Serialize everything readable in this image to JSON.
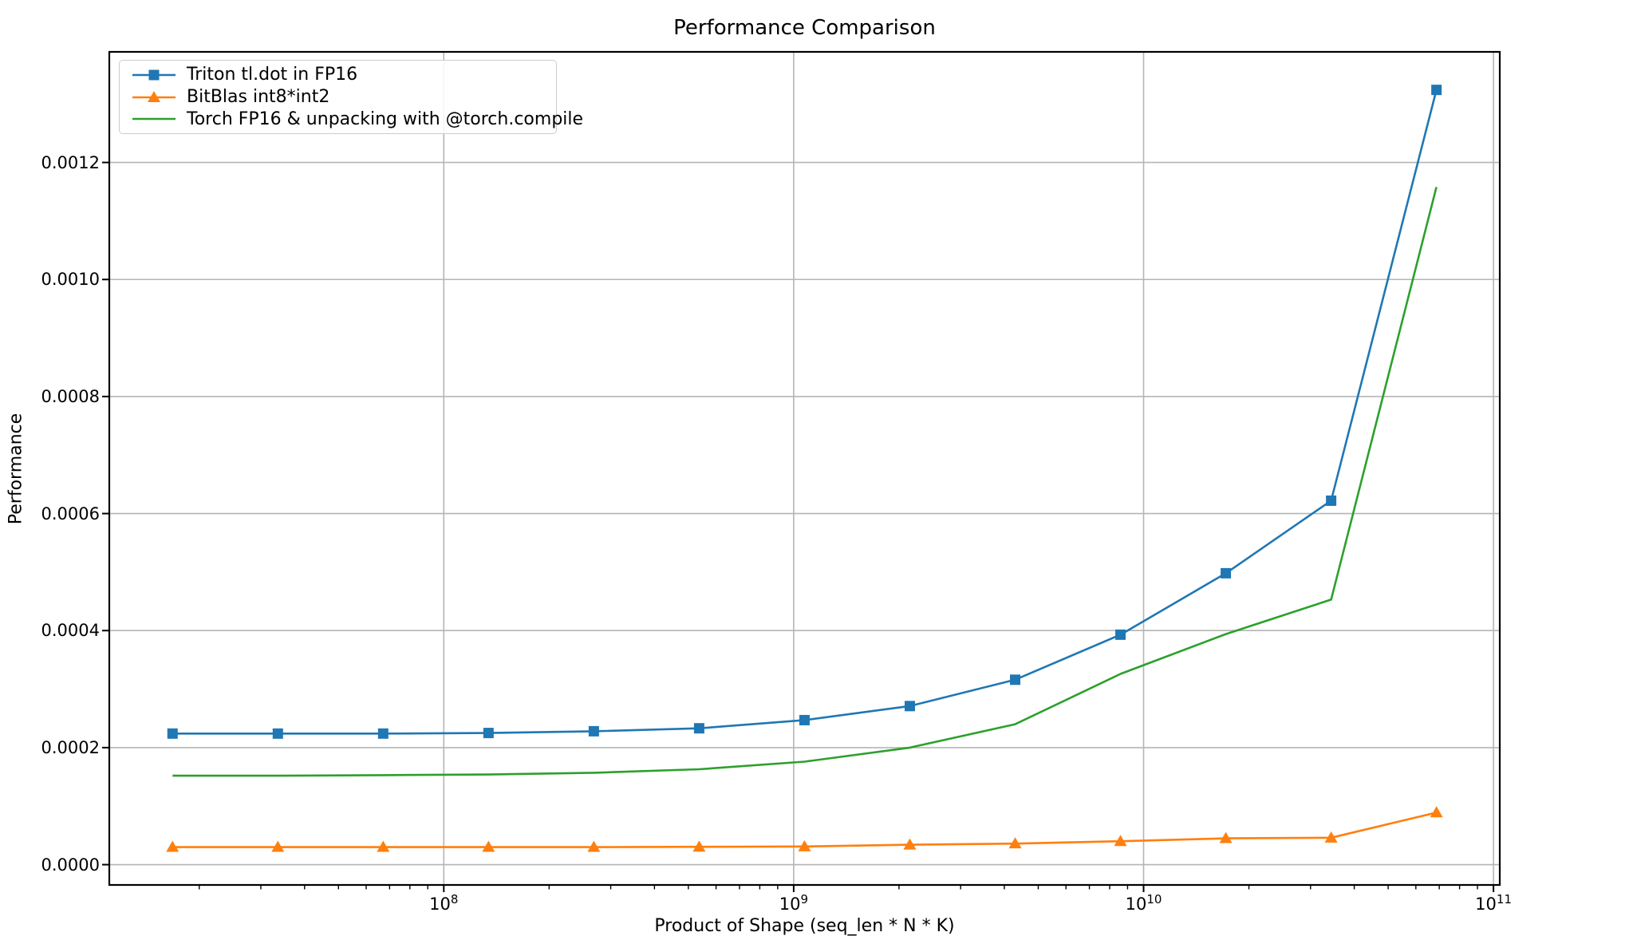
{
  "chart_data": {
    "type": "line",
    "title": "Performance Comparison",
    "xlabel": "Product of Shape (seq_len * N * K)",
    "ylabel": "Performance",
    "x_scale": "log",
    "grid": true,
    "grid_color": "#b5b5b5",
    "legend_position": "upper-left",
    "xlim_log10": [
      7.044,
      11.018
    ],
    "ylim": [
      -3.47e-05,
      0.001389
    ],
    "x": [
      16777216,
      33554432,
      67108864,
      134217728,
      268435456,
      536870912,
      1073741824,
      2147483648,
      4294967296,
      8589934592,
      17179869184,
      34359738368,
      68719476736
    ],
    "series": [
      {
        "name": "Triton tl.dot in FP16",
        "color": "#1f77b4",
        "marker": "square",
        "values": [
          0.000224,
          0.000224,
          0.000224,
          0.000225,
          0.000228,
          0.000233,
          0.000247,
          0.000271,
          0.000316,
          0.000393,
          0.000498,
          0.000622,
          0.001324
        ]
      },
      {
        "name": "BitBlas int8*int2",
        "color": "#ff7f0e",
        "marker": "triangle",
        "values": [
          3e-05,
          3e-05,
          3e-05,
          3e-05,
          3e-05,
          3.05e-05,
          3.1e-05,
          3.4e-05,
          3.6e-05,
          4e-05,
          4.5e-05,
          4.6e-05,
          8.9e-05
        ]
      },
      {
        "name": "Torch FP16 & unpacking with @torch.compile",
        "color": "#2ca02c",
        "marker": "none",
        "values": [
          0.000152,
          0.000152,
          0.000153,
          0.000154,
          0.000157,
          0.000163,
          0.000176,
          0.0002,
          0.00024,
          0.000326,
          0.000394,
          0.000453,
          0.001158
        ]
      }
    ],
    "y_ticks": [
      {
        "value": 0.0,
        "label": "0.0000"
      },
      {
        "value": 0.0002,
        "label": "0.0002"
      },
      {
        "value": 0.0004,
        "label": "0.0004"
      },
      {
        "value": 0.0006,
        "label": "0.0006"
      },
      {
        "value": 0.0008,
        "label": "0.0008"
      },
      {
        "value": 0.001,
        "label": "0.0010"
      },
      {
        "value": 0.0012,
        "label": "0.0012"
      }
    ],
    "x_ticks": [
      {
        "mantissa": "10",
        "exp": "8"
      },
      {
        "mantissa": "10",
        "exp": "9"
      },
      {
        "mantissa": "10",
        "exp": "10"
      },
      {
        "mantissa": "10",
        "exp": "11"
      }
    ]
  }
}
